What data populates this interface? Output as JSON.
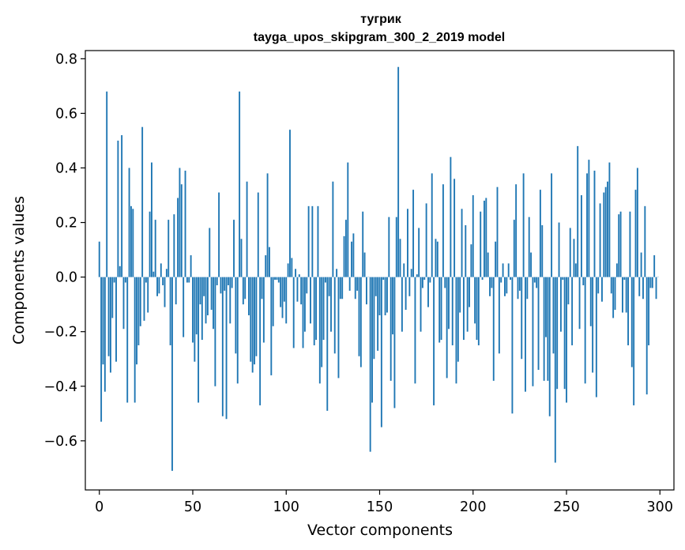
{
  "chart_data": {
    "type": "bar",
    "title": "тугрик",
    "subtitle": "tayga_upos_skipgram_300_2_2019 model",
    "xlabel": "Vector components",
    "ylabel": "Components values",
    "xlim": [
      -7.5,
      307.5
    ],
    "ylim": [
      -0.78,
      0.83
    ],
    "xticks": [
      0,
      50,
      100,
      150,
      200,
      250,
      300
    ],
    "yticks": [
      -0.6,
      -0.4,
      -0.2,
      0.0,
      0.2,
      0.4,
      0.6,
      0.8
    ],
    "ytick_labels": [
      "−0.6",
      "−0.4",
      "−0.2",
      "0.0",
      "0.2",
      "0.4",
      "0.6",
      "0.8"
    ],
    "grid": false,
    "bar_color": "#1f77b4",
    "x": "0..299 (component index)",
    "values": [
      0.13,
      -0.53,
      -0.32,
      -0.42,
      0.68,
      -0.29,
      -0.35,
      -0.15,
      -0.02,
      -0.31,
      0.5,
      0.04,
      0.52,
      -0.19,
      -0.02,
      -0.46,
      0.4,
      0.26,
      0.25,
      -0.46,
      -0.32,
      -0.25,
      -0.18,
      0.55,
      -0.16,
      -0.02,
      -0.13,
      0.24,
      0.42,
      0.02,
      0.21,
      -0.07,
      -0.06,
      0.05,
      -0.03,
      -0.11,
      0.03,
      0.21,
      -0.25,
      -0.71,
      0.23,
      -0.1,
      0.29,
      0.4,
      0.34,
      -0.22,
      0.39,
      -0.02,
      -0.02,
      0.08,
      -0.24,
      -0.31,
      -0.21,
      -0.46,
      -0.1,
      -0.23,
      -0.07,
      -0.17,
      -0.14,
      0.18,
      -0.12,
      -0.19,
      -0.4,
      -0.03,
      0.31,
      -0.06,
      -0.51,
      -0.05,
      -0.52,
      -0.03,
      -0.17,
      -0.04,
      0.21,
      -0.28,
      -0.39,
      0.68,
      0.14,
      -0.1,
      -0.08,
      0.35,
      -0.14,
      -0.31,
      -0.35,
      -0.32,
      -0.29,
      0.31,
      -0.47,
      -0.08,
      -0.24,
      0.08,
      0.38,
      0.11,
      -0.36,
      -0.18,
      -0.01,
      -0.01,
      -0.02,
      -0.11,
      -0.15,
      -0.09,
      -0.17,
      0.05,
      0.54,
      0.07,
      -0.26,
      0.03,
      -0.09,
      0.01,
      -0.1,
      -0.26,
      -0.2,
      -0.06,
      0.26,
      -0.17,
      0.26,
      -0.25,
      -0.23,
      0.26,
      -0.39,
      -0.33,
      -0.23,
      -0.02,
      -0.49,
      -0.07,
      -0.2,
      0.35,
      -0.28,
      0.03,
      -0.37,
      -0.08,
      -0.08,
      0.15,
      0.21,
      0.42,
      -0.05,
      0.13,
      0.16,
      -0.08,
      -0.05,
      -0.29,
      -0.33,
      0.24,
      0.09,
      -0.1,
      0.0,
      -0.64,
      -0.46,
      -0.3,
      -0.07,
      -0.27,
      -0.14,
      -0.55,
      -0.01,
      -0.14,
      -0.13,
      0.22,
      -0.38,
      -0.21,
      -0.48,
      0.22,
      0.77,
      0.14,
      -0.2,
      0.05,
      -0.12,
      0.25,
      -0.07,
      0.03,
      0.32,
      -0.39,
      0.01,
      0.18,
      -0.2,
      -0.04,
      -0.01,
      0.27,
      -0.11,
      -0.02,
      0.38,
      -0.47,
      0.14,
      0.13,
      -0.24,
      -0.23,
      0.34,
      -0.04,
      -0.37,
      -0.19,
      0.44,
      -0.25,
      0.36,
      -0.39,
      -0.31,
      -0.13,
      0.25,
      -0.23,
      0.19,
      -0.2,
      -0.11,
      0.12,
      0.3,
      -0.17,
      -0.23,
      -0.25,
      0.24,
      -0.01,
      0.28,
      0.29,
      0.09,
      -0.07,
      -0.04,
      -0.38,
      0.13,
      0.33,
      -0.28,
      -0.02,
      0.05,
      -0.07,
      -0.06,
      0.05,
      -0.01,
      -0.5,
      0.21,
      0.34,
      -0.08,
      -0.05,
      -0.3,
      0.38,
      -0.42,
      -0.08,
      0.22,
      0.09,
      -0.4,
      -0.02,
      -0.04,
      -0.34,
      0.32,
      0.19,
      -0.38,
      -0.22,
      -0.38,
      -0.51,
      0.38,
      -0.28,
      -0.68,
      -0.41,
      0.2,
      -0.2,
      -0.01,
      -0.41,
      -0.46,
      -0.1,
      0.18,
      -0.25,
      0.14,
      0.05,
      0.48,
      -0.19,
      0.3,
      -0.03,
      -0.39,
      0.38,
      0.43,
      -0.18,
      -0.35,
      0.39,
      -0.44,
      -0.06,
      0.27,
      -0.09,
      0.31,
      0.33,
      0.35,
      0.42,
      -0.06,
      -0.15,
      -0.12,
      0.05,
      0.23,
      0.24,
      -0.13,
      -0.01,
      -0.13,
      -0.25,
      0.24,
      -0.33,
      -0.47,
      0.32,
      0.4,
      -0.07,
      0.09,
      -0.08,
      0.26,
      -0.43,
      -0.25,
      -0.04,
      -0.04,
      0.08,
      -0.08,
      0.0
    ]
  }
}
